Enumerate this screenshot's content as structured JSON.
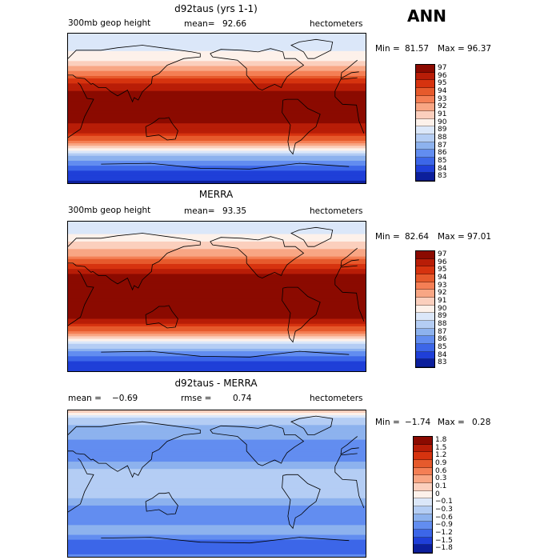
{
  "season": "ANN",
  "panels": [
    {
      "title": "d92taus (yrs 1-1)",
      "left_label": "300mb geop height",
      "mean_label": "mean=",
      "mean_value": "92.66",
      "units": "hectometers",
      "min_label": "Min =",
      "min_value": "81.57",
      "max_label": "Max =",
      "max_value": "96.37",
      "colorbar_labels": [
        "97",
        "96",
        "95",
        "94",
        "93",
        "92",
        "91",
        "90",
        "89",
        "88",
        "87",
        "86",
        "85",
        "84",
        "83"
      ],
      "colorbar_colors": [
        "#8b0a00",
        "#b81d07",
        "#d6330f",
        "#e65a2c",
        "#f47f55",
        "#f8a684",
        "#fbcfbd",
        "#fdf1ea",
        "#dbe7f9",
        "#b4cdf4",
        "#8db2ee",
        "#628df0",
        "#3c66e8",
        "#1f3fd8",
        "#0c1f9c"
      ]
    },
    {
      "title": "MERRA",
      "left_label": "300mb geop height",
      "mean_label": "mean=",
      "mean_value": "93.35",
      "units": "hectometers",
      "min_label": "Min =",
      "min_value": "82.64",
      "max_label": "Max =",
      "max_value": "97.01",
      "colorbar_labels": [
        "97",
        "96",
        "95",
        "94",
        "93",
        "92",
        "91",
        "90",
        "89",
        "88",
        "87",
        "86",
        "85",
        "84",
        "83"
      ],
      "colorbar_colors": [
        "#8b0a00",
        "#b81d07",
        "#d6330f",
        "#e65a2c",
        "#f47f55",
        "#f8a684",
        "#fbcfbd",
        "#fdf1ea",
        "#dbe7f9",
        "#b4cdf4",
        "#8db2ee",
        "#628df0",
        "#3c66e8",
        "#1f3fd8",
        "#0c1f9c"
      ]
    },
    {
      "title": "d92taus - MERRA",
      "mean_label": "mean =",
      "mean_value": "−0.69",
      "rmse_label": "rmse =",
      "rmse_value": "0.74",
      "units": "hectometers",
      "min_label": "Min =",
      "min_value": "−1.74",
      "max_label": "Max =",
      "max_value": "0.28",
      "colorbar_labels": [
        "1.8",
        "1.5",
        "1.2",
        "0.9",
        "0.6",
        "0.3",
        "0.1",
        "0",
        "−0.1",
        "−0.3",
        "−0.6",
        "−0.9",
        "−1.2",
        "−1.5",
        "−1.8"
      ],
      "colorbar_colors": [
        "#8b0a00",
        "#b81d07",
        "#d6330f",
        "#e65a2c",
        "#f47f55",
        "#f8a684",
        "#fbcfbd",
        "#fdf1ea",
        "#dbe7f9",
        "#b4cdf4",
        "#8db2ee",
        "#628df0",
        "#3c66e8",
        "#1f3fd8",
        "#0c1f9c"
      ]
    }
  ],
  "chart_data": [
    {
      "type": "heatmap",
      "title": "d92taus (yrs 1-1)",
      "variable": "300mb geop height",
      "units": "hectometers",
      "mean": 92.66,
      "min": 81.57,
      "max": 96.37,
      "lat_profile": {
        "lat": [
          90,
          75,
          60,
          50,
          40,
          30,
          20,
          10,
          0,
          -10,
          -20,
          -30,
          -40,
          -50,
          -60,
          -75,
          -90
        ],
        "value": [
          88.5,
          88.8,
          90.3,
          91.5,
          93.5,
          95.5,
          96.5,
          96.7,
          96.8,
          96.7,
          96.4,
          95.4,
          93.0,
          90.2,
          87.0,
          84.3,
          83.2
        ]
      },
      "colorbar_levels": [
        97,
        96,
        95,
        94,
        93,
        92,
        91,
        90,
        89,
        88,
        87,
        86,
        85,
        84,
        83
      ]
    },
    {
      "type": "heatmap",
      "title": "MERRA",
      "variable": "300mb geop height",
      "units": "hectometers",
      "mean": 93.35,
      "min": 82.64,
      "max": 97.01,
      "lat_profile": {
        "lat": [
          90,
          75,
          60,
          50,
          40,
          30,
          20,
          10,
          0,
          -10,
          -20,
          -30,
          -40,
          -50,
          -60,
          -75,
          -90
        ],
        "value": [
          89.0,
          89.4,
          91.0,
          92.3,
          94.3,
          96.3,
          97.0,
          97.0,
          97.0,
          97.0,
          96.9,
          96.2,
          93.9,
          91.0,
          87.8,
          84.8,
          83.6
        ]
      },
      "colorbar_levels": [
        97,
        96,
        95,
        94,
        93,
        92,
        91,
        90,
        89,
        88,
        87,
        86,
        85,
        84,
        83
      ]
    },
    {
      "type": "heatmap",
      "title": "d92taus - MERRA",
      "units": "hectometers",
      "mean": -0.69,
      "rmse": 0.74,
      "min": -1.74,
      "max": 0.28,
      "lat_profile": {
        "lat": [
          90,
          75,
          60,
          50,
          40,
          30,
          20,
          10,
          0,
          -10,
          -20,
          -30,
          -40,
          -50,
          -60,
          -75,
          -90
        ],
        "value": [
          0.2,
          -0.4,
          -0.7,
          -0.8,
          -0.8,
          -0.8,
          -0.5,
          -0.3,
          -0.2,
          -0.3,
          -0.5,
          -0.8,
          -0.9,
          -0.8,
          -0.6,
          -1.3,
          -1.0
        ]
      },
      "colorbar_levels": [
        1.8,
        1.5,
        1.2,
        0.9,
        0.6,
        0.3,
        0.1,
        0,
        -0.1,
        -0.3,
        -0.6,
        -0.9,
        -1.2,
        -1.5,
        -1.8
      ]
    }
  ]
}
